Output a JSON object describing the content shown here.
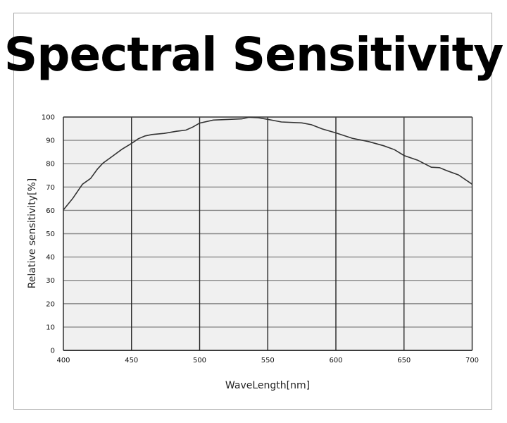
{
  "chart_data": {
    "type": "line",
    "title": "Spectral Sensitivity",
    "xlabel": "WaveLength[nm]",
    "ylabel": "Relative sensitivity[%]",
    "xlim": [
      400,
      700
    ],
    "ylim": [
      0,
      100
    ],
    "xticks": [
      400,
      450,
      500,
      550,
      600,
      650,
      700
    ],
    "yticks": [
      0,
      10,
      20,
      30,
      40,
      50,
      60,
      70,
      80,
      90,
      100
    ],
    "grid": true,
    "colors": {
      "line": "#333333",
      "plot_bg": "#f0f0f0",
      "hgrid": "#8a8a8a",
      "vgrid": "#222222"
    },
    "series": [
      {
        "x": [
          400,
          407,
          414,
          420,
          425,
          429,
          436,
          443,
          450,
          455,
          460,
          465,
          474,
          483,
          490,
          495,
          500,
          510,
          522,
          531,
          536,
          543,
          550,
          560,
          575,
          582,
          590,
          600,
          612,
          624,
          635,
          643,
          650,
          660,
          670,
          676,
          681,
          690,
          700
        ],
        "y": [
          60.2,
          65.2,
          71.2,
          73.7,
          77.7,
          80.2,
          83.2,
          86.2,
          88.7,
          90.7,
          91.9,
          92.5,
          93.0,
          93.9,
          94.4,
          95.7,
          97.4,
          98.7,
          99.0,
          99.2,
          99.9,
          99.7,
          99.0,
          97.9,
          97.5,
          96.7,
          94.9,
          93.2,
          90.9,
          89.5,
          87.7,
          86.0,
          83.5,
          81.5,
          78.5,
          78.3,
          77.1,
          75.2,
          71.2
        ]
      }
    ]
  }
}
